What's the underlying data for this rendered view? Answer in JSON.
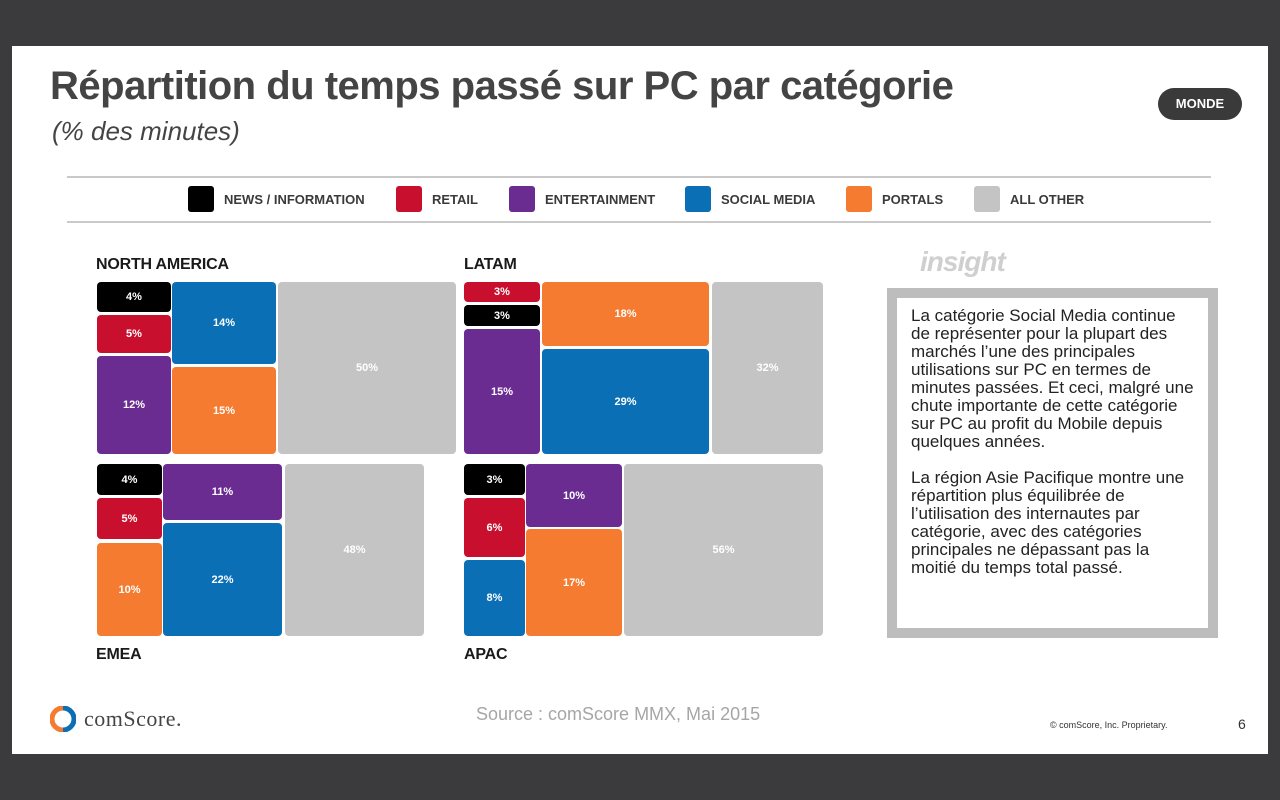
{
  "header": {
    "title": "Répartition du temps passé sur PC par catégorie",
    "subtitle": "(% des minutes)",
    "badge": "MONDE"
  },
  "legend": [
    {
      "label": "NEWS / INFORMATION",
      "color": "#000000"
    },
    {
      "label": "RETAIL",
      "color": "#c8102e"
    },
    {
      "label": "ENTERTAINMENT",
      "color": "#6b2c91"
    },
    {
      "label": "SOCIAL MEDIA",
      "color": "#0a6fb5"
    },
    {
      "label": "PORTALS",
      "color": "#f47b30"
    },
    {
      "label": "ALL OTHER",
      "color": "#c4c4c4"
    }
  ],
  "chart_data": {
    "type": "treemap",
    "categories": [
      "NEWS / INFORMATION",
      "RETAIL",
      "ENTERTAINMENT",
      "SOCIAL MEDIA",
      "PORTALS",
      "ALL OTHER"
    ],
    "regions": [
      {
        "name": "NORTH AMERICA",
        "values": [
          4,
          5,
          12,
          14,
          15,
          50
        ],
        "labels": [
          "4%",
          "5%",
          "12%",
          "14%",
          "15%",
          "50%"
        ]
      },
      {
        "name": "LATAM",
        "values": [
          3,
          3,
          15,
          29,
          18,
          32
        ],
        "labels": [
          "3%",
          "3%",
          "15%",
          "29%",
          "18%",
          "32%"
        ]
      },
      {
        "name": "EMEA",
        "values": [
          4,
          5,
          11,
          22,
          10,
          48
        ],
        "labels": [
          "4%",
          "5%",
          "11%",
          "22%",
          "10%",
          "48%"
        ]
      },
      {
        "name": "APAC",
        "values": [
          3,
          6,
          10,
          8,
          17,
          56
        ],
        "labels": [
          "3%",
          "6%",
          "10%",
          "8%",
          "17%",
          "56%"
        ]
      }
    ]
  },
  "insight": {
    "heading": "insight",
    "paragraph1": "La catégorie Social Media continue de représenter pour la plupart des marchés l’une des principales utilisations sur PC en termes de minutes passées. Et ceci, malgré une chute importante de cette catégorie sur PC au profit du Mobile depuis quelques années.",
    "paragraph2": "La région Asie Pacifique montre une répartition plus équilibrée de l’utilisation des internautes par catégorie, avec des catégories principales ne dépassant pas la moitié du temps total passé."
  },
  "footer": {
    "source": "Source : comScore MMX, Mai 2015",
    "logo_text": "comScore.",
    "copyright": "© comScore, Inc. Proprietary.",
    "page_number": "6"
  }
}
